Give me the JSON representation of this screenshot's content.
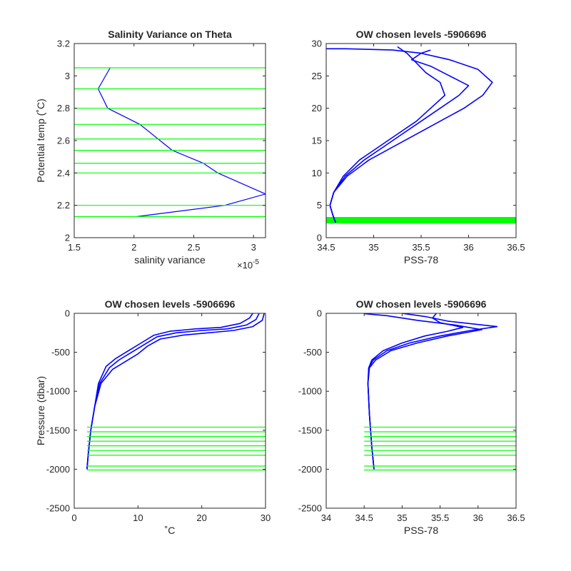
{
  "figure": {
    "colors": {
      "profile": "#0000ff",
      "level": "#00ff00",
      "axis": "#262626",
      "background": "#ffffff"
    }
  },
  "chart_data": [
    {
      "id": "tl",
      "type": "line",
      "title": "Salinity Variance on Theta",
      "xlabel": "salinity variance",
      "ylabel": "Potential temp (˚C)",
      "x_exponent_label": "×10",
      "x_exponent_power": "-5",
      "xlim": [
        1.5,
        3.1
      ],
      "ylim": [
        2.0,
        3.2
      ],
      "xticks": [
        1.5,
        2,
        2.5,
        3
      ],
      "xtick_labels": [
        "1.5",
        "2",
        "2.5",
        "3"
      ],
      "yticks": [
        2.0,
        2.2,
        2.4,
        2.6,
        2.8,
        3.0,
        3.2
      ],
      "ytick_labels": [
        "2",
        "2.2",
        "2.4",
        "2.6",
        "2.8",
        "3",
        "3.2"
      ],
      "series": [
        {
          "x": [
            1.8,
            1.7,
            1.78,
            2.05,
            2.32,
            2.58,
            2.7,
            3.1,
            2.76,
            2.02
          ],
          "y": [
            3.05,
            2.92,
            2.8,
            2.7,
            2.54,
            2.46,
            2.4,
            2.27,
            2.2,
            2.13
          ]
        }
      ],
      "hlines": [
        3.05,
        2.92,
        2.8,
        2.7,
        2.61,
        2.54,
        2.46,
        2.4,
        2.2,
        2.13
      ]
    },
    {
      "id": "tr",
      "type": "line",
      "title": "OW chosen levels -5906696",
      "xlabel": "PSS-78",
      "ylabel": "",
      "xlim": [
        34.5,
        36.5
      ],
      "ylim": [
        0,
        30
      ],
      "xticks": [
        34.5,
        35,
        35.5,
        36,
        36.5
      ],
      "xtick_labels": [
        "34.5",
        "35",
        "35.5",
        "36",
        "36.5"
      ],
      "yticks": [
        0,
        5,
        10,
        15,
        20,
        25,
        30
      ],
      "ytick_labels": [
        "0",
        "5",
        "10",
        "15",
        "20",
        "25",
        "30"
      ],
      "series": [
        {
          "x": [
            34.6,
            34.57,
            34.54,
            34.58,
            34.7,
            34.9,
            35.1,
            35.3,
            35.5,
            35.7,
            35.9,
            36.0,
            35.8,
            35.6,
            35.4,
            35.5,
            35.6
          ],
          "y": [
            2.3,
            3.5,
            5.0,
            7.0,
            9.5,
            12.0,
            14.0,
            16.0,
            18.0,
            20.0,
            22.0,
            23.5,
            25.0,
            26.5,
            27.5,
            28.5,
            29.0
          ]
        },
        {
          "x": [
            34.6,
            34.57,
            34.54,
            34.58,
            34.72,
            34.95,
            35.2,
            35.45,
            35.7,
            35.95,
            36.15,
            36.25,
            36.1,
            35.8,
            35.5,
            35.2,
            34.7,
            34.5
          ],
          "y": [
            2.3,
            3.5,
            5.0,
            7.0,
            9.5,
            12.0,
            14.0,
            16.0,
            18.0,
            20.0,
            22.0,
            24.0,
            26.0,
            27.5,
            28.5,
            29.0,
            29.2,
            29.2
          ]
        },
        {
          "x": [
            34.6,
            34.57,
            34.54,
            34.58,
            34.68,
            34.85,
            35.05,
            35.25,
            35.45,
            35.6,
            35.75,
            35.7,
            35.55,
            35.45,
            35.35,
            35.25
          ],
          "y": [
            2.3,
            3.5,
            5.0,
            7.0,
            9.5,
            12.0,
            14.0,
            16.0,
            18.0,
            20.0,
            22.0,
            24.0,
            25.5,
            27.0,
            28.5,
            29.5
          ]
        }
      ],
      "band": [
        2.2,
        3.2
      ]
    },
    {
      "id": "bl",
      "type": "line",
      "title": "OW chosen levels -5906696",
      "xlabel": "˚C",
      "ylabel": "Pressure (dbar)",
      "xlim": [
        0,
        30
      ],
      "ylim": [
        -2500,
        0
      ],
      "xticks": [
        0,
        10,
        20,
        30
      ],
      "xtick_labels": [
        "0",
        "10",
        "20",
        "30"
      ],
      "yticks": [
        -2500,
        -2000,
        -1500,
        -1000,
        -500,
        0
      ],
      "ytick_labels": [
        "-2500",
        "-2000",
        "-1500",
        "-1000",
        "-500",
        "0"
      ],
      "series": [
        {
          "x": [
            2.0,
            2.2,
            2.6,
            3.2,
            4.0,
            5.5,
            7.0,
            9.0,
            11.0,
            13.0,
            16.0,
            20.0,
            24.0,
            27.0,
            28.5,
            29.0
          ],
          "y": [
            -2000,
            -1800,
            -1500,
            -1200,
            -900,
            -700,
            -600,
            -500,
            -400,
            -300,
            -250,
            -220,
            -200,
            -150,
            -80,
            0
          ]
        },
        {
          "x": [
            2.0,
            2.2,
            2.6,
            3.2,
            4.2,
            6.0,
            8.0,
            10.0,
            11.5,
            13.5,
            17.0,
            21.0,
            25.0,
            28.0,
            29.5,
            29.8
          ],
          "y": [
            -2000,
            -1800,
            -1500,
            -1200,
            -900,
            -720,
            -620,
            -520,
            -420,
            -330,
            -280,
            -250,
            -220,
            -170,
            -90,
            0
          ]
        },
        {
          "x": [
            2.0,
            2.2,
            2.6,
            3.2,
            3.8,
            5.0,
            6.5,
            8.5,
            10.5,
            12.5,
            15.0,
            19.0,
            23.0,
            26.0,
            27.5,
            28.0
          ],
          "y": [
            -2000,
            -1800,
            -1500,
            -1200,
            -900,
            -680,
            -580,
            -480,
            -380,
            -280,
            -230,
            -200,
            -180,
            -130,
            -60,
            0
          ]
        }
      ],
      "hlines": [
        -1460,
        -1520,
        -1580,
        -1640,
        -1700,
        -1760,
        -1820,
        -1960,
        -2010
      ]
    },
    {
      "id": "br",
      "type": "line",
      "title": "OW chosen levels -5906696",
      "xlabel": "PSS-78",
      "ylabel": "",
      "xlim": [
        34,
        36.5
      ],
      "ylim": [
        -2500,
        0
      ],
      "xticks": [
        34,
        34.5,
        35,
        35.5,
        36,
        36.5
      ],
      "xtick_labels": [
        "34",
        "34.5",
        "35",
        "35.5",
        "36",
        "36.5"
      ],
      "yticks": [
        -2500,
        -2000,
        -1500,
        -1000,
        -500,
        0
      ],
      "ytick_labels": [
        "-2500",
        "-2000",
        "-1500",
        "-1000",
        "-500",
        "0"
      ],
      "series": [
        {
          "x": [
            34.63,
            34.6,
            34.57,
            34.55,
            34.56,
            34.62,
            34.8,
            35.1,
            35.5,
            35.9,
            36.25,
            35.6,
            35.3,
            35.0
          ],
          "y": [
            -2000,
            -1700,
            -1300,
            -900,
            -700,
            -600,
            -480,
            -380,
            -290,
            -220,
            -170,
            -100,
            -40,
            0
          ]
        },
        {
          "x": [
            34.63,
            34.6,
            34.57,
            34.55,
            34.57,
            34.65,
            34.85,
            35.2,
            35.6,
            36.05,
            35.7,
            35.2,
            34.8,
            34.5
          ],
          "y": [
            -2000,
            -1700,
            -1300,
            -900,
            -700,
            -600,
            -480,
            -380,
            -290,
            -210,
            -150,
            -90,
            -30,
            -5
          ]
        },
        {
          "x": [
            34.63,
            34.6,
            34.57,
            34.55,
            34.56,
            34.6,
            34.75,
            35.0,
            35.3,
            35.6,
            35.8,
            35.5,
            35.4,
            35.45
          ],
          "y": [
            -2000,
            -1700,
            -1300,
            -900,
            -700,
            -600,
            -480,
            -380,
            -290,
            -230,
            -180,
            -120,
            -60,
            0
          ]
        }
      ],
      "hlines": [
        -1460,
        -1520,
        -1580,
        -1640,
        -1700,
        -1760,
        -1820,
        -1960,
        -2010
      ]
    }
  ]
}
